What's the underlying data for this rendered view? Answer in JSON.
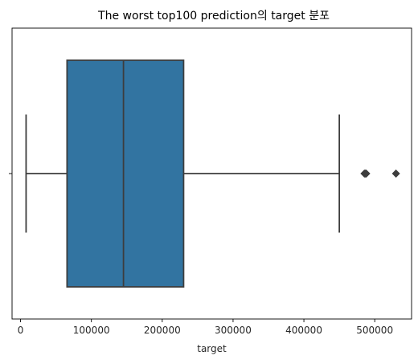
{
  "chart_data": {
    "type": "box",
    "title": "The worst top100 prediction의 target 분포",
    "xlabel": "target",
    "ylabel": "",
    "xlim": [
      -12000,
      552000
    ],
    "x_ticks": [
      0,
      100000,
      200000,
      300000,
      400000,
      500000
    ],
    "x_tick_labels": [
      "0",
      "100000",
      "200000",
      "300000",
      "400000",
      "500000"
    ],
    "y_ticks": [
      ""
    ],
    "grid": false,
    "legend": "none",
    "box": {
      "whisker_low": 7800,
      "q1": 65600,
      "median": 145300,
      "q3": 230200,
      "whisker_high": 450000,
      "outliers": [
        485500,
        486900,
        488000,
        530000
      ]
    },
    "colors": {
      "box_fill": "#3274a1",
      "line": "#3d3d3d",
      "axis": "#000000"
    }
  }
}
